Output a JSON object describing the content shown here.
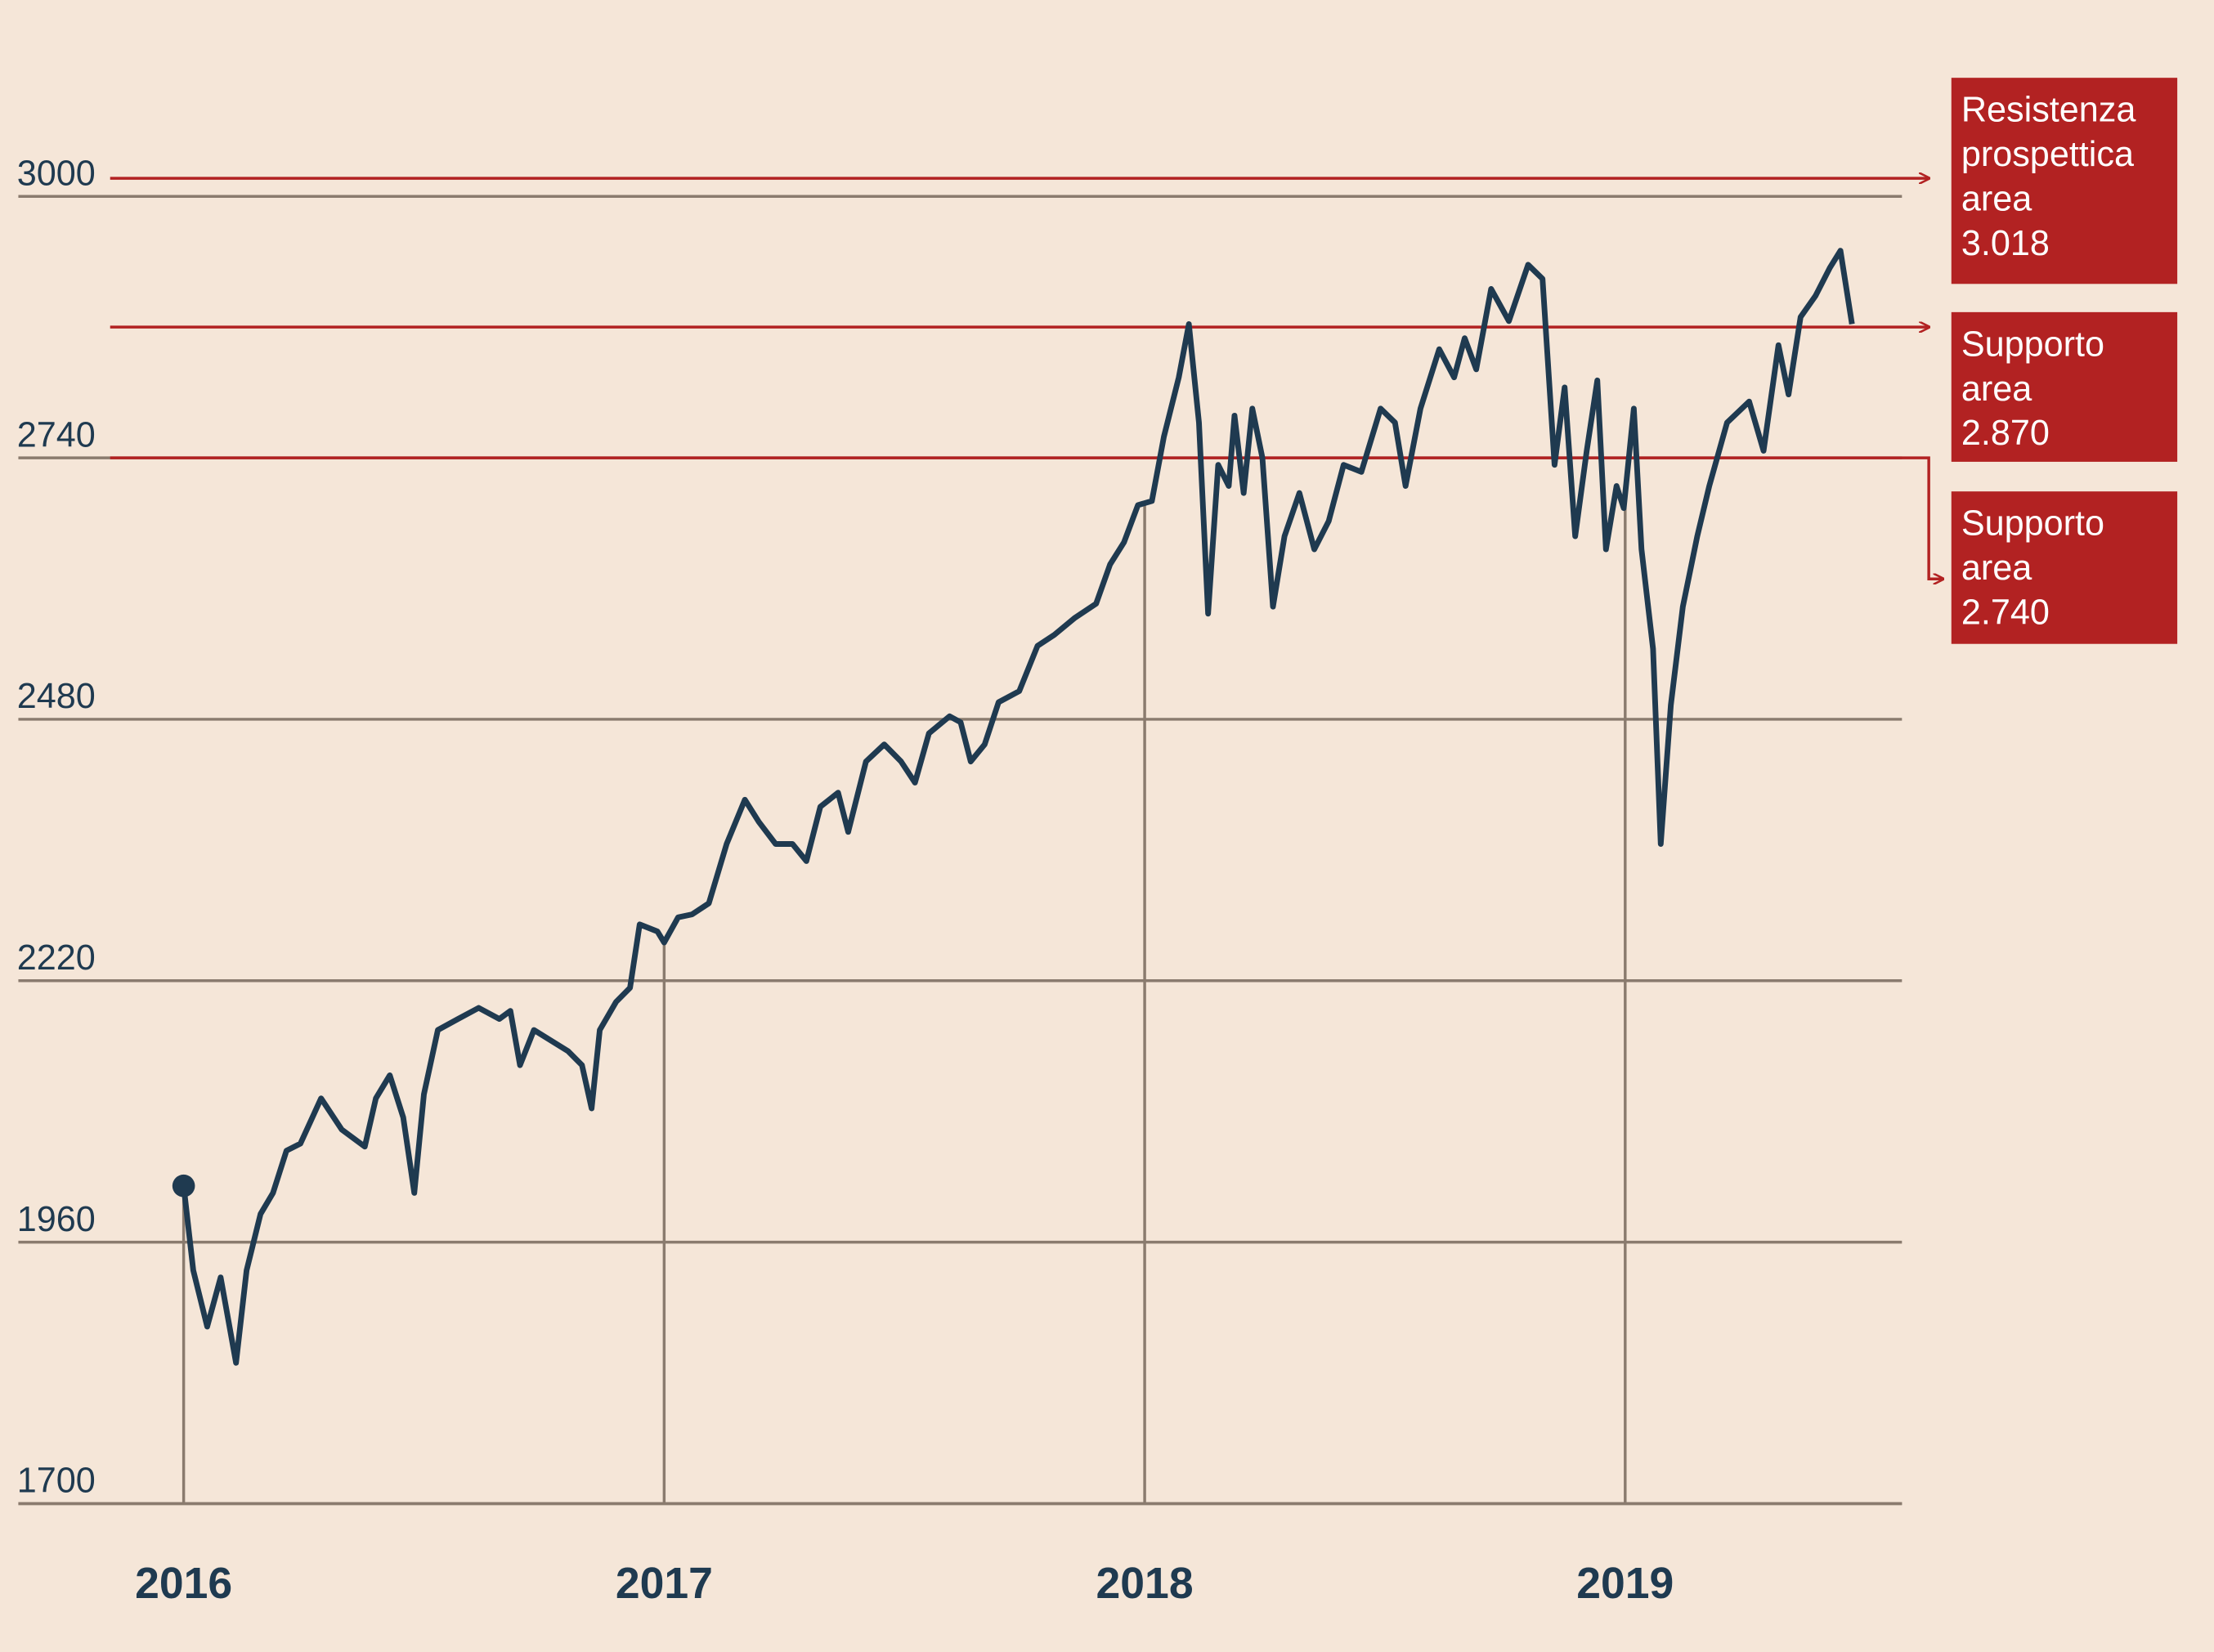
{
  "chart_data": {
    "type": "line",
    "x": [
      2016.0,
      2016.02,
      2016.049,
      2016.077,
      2016.109,
      2016.131,
      2016.16,
      2016.186,
      2016.214,
      2016.243,
      2016.286,
      2016.329,
      2016.377,
      2016.4,
      2016.429,
      2016.457,
      2016.48,
      2016.5,
      2016.529,
      2016.571,
      2016.614,
      2016.657,
      2016.68,
      2016.7,
      2016.729,
      2016.766,
      2016.8,
      2016.829,
      2016.849,
      2016.866,
      2016.9,
      2016.929,
      2016.949,
      2016.986,
      2017.0,
      2017.029,
      2017.058,
      2017.093,
      2017.13,
      2017.168,
      2017.197,
      2017.232,
      2017.267,
      2017.296,
      2017.325,
      2017.362,
      2017.383,
      2017.42,
      2017.458,
      2017.493,
      2017.522,
      2017.551,
      2017.594,
      2017.617,
      2017.638,
      2017.667,
      2017.696,
      2017.739,
      2017.777,
      2017.812,
      2017.855,
      2017.899,
      2017.928,
      2017.957,
      2017.986,
      2018.015,
      2018.04,
      2018.071,
      2018.092,
      2018.113,
      2018.132,
      2018.153,
      2018.175,
      2018.187,
      2018.206,
      2018.224,
      2018.245,
      2018.267,
      2018.291,
      2018.322,
      2018.353,
      2018.383,
      2018.414,
      2018.451,
      2018.491,
      2018.521,
      2018.543,
      2018.574,
      2018.613,
      2018.644,
      2018.666,
      2018.69,
      2018.721,
      2018.758,
      2018.798,
      2018.828,
      2018.853,
      2018.874,
      2018.896,
      2018.92,
      2018.942,
      2018.96,
      2018.982,
      2018.997,
      2019.018,
      2019.034,
      2019.058,
      2019.074,
      2019.095,
      2019.12,
      2019.15,
      2019.175,
      2019.212,
      2019.258,
      2019.288,
      2019.319,
      2019.34,
      2019.365,
      2019.396,
      2019.426,
      2019.448,
      2019.472
    ],
    "values": [
      2016,
      1932,
      1876,
      1925,
      1840,
      1932,
      1988,
      2009,
      2051,
      2058,
      2103,
      2072,
      2055,
      2103,
      2126,
      2084,
      2009,
      2107,
      2171,
      2182,
      2193,
      2182,
      2190,
      2136,
      2171,
      2160,
      2150,
      2136,
      2093,
      2171,
      2199,
      2213,
      2276,
      2269,
      2258,
      2283,
      2286,
      2297,
      2356,
      2400,
      2378,
      2356,
      2356,
      2339,
      2393,
      2407,
      2368,
      2438,
      2455,
      2438,
      2417,
      2466,
      2483,
      2477,
      2438,
      2455,
      2497,
      2508,
      2553,
      2564,
      2581,
      2595,
      2634,
      2656,
      2693,
      2697,
      2761,
      2820,
      2873,
      2775,
      2585,
      2733,
      2712,
      2782,
      2705,
      2789,
      2740,
      2592,
      2662,
      2705,
      2649,
      2677,
      2733,
      2726,
      2789,
      2775,
      2712,
      2789,
      2848,
      2820,
      2859,
      2828,
      2908,
      2876,
      2932,
      2918,
      2733,
      2810,
      2662,
      2747,
      2817,
      2649,
      2712,
      2690,
      2789,
      2649,
      2550,
      2356,
      2494,
      2592,
      2662,
      2712,
      2775,
      2796,
      2747,
      2852,
      2803,
      2880,
      2901,
      2929,
      2946,
      2873
    ],
    "color": "#1f3a50",
    "xlim": [
      2015.656,
      2019.576
    ],
    "xticks": [
      2016,
      2017,
      2018,
      2019
    ],
    "ylim": [
      1700,
      3000
    ],
    "yticks": [
      1700,
      1960,
      2220,
      2480,
      2740,
      3000
    ],
    "grid": true,
    "annotations": [
      {
        "value": 3018,
        "lines": [
          "Resistenza",
          "prospettica",
          "area",
          "3.018"
        ]
      },
      {
        "value": 2870,
        "lines": [
          "Supporto",
          "area",
          "2.870"
        ]
      },
      {
        "value": 2740,
        "lines": [
          "Supporto",
          "area",
          "2.740"
        ]
      }
    ],
    "annotation_color": "#b22222"
  }
}
